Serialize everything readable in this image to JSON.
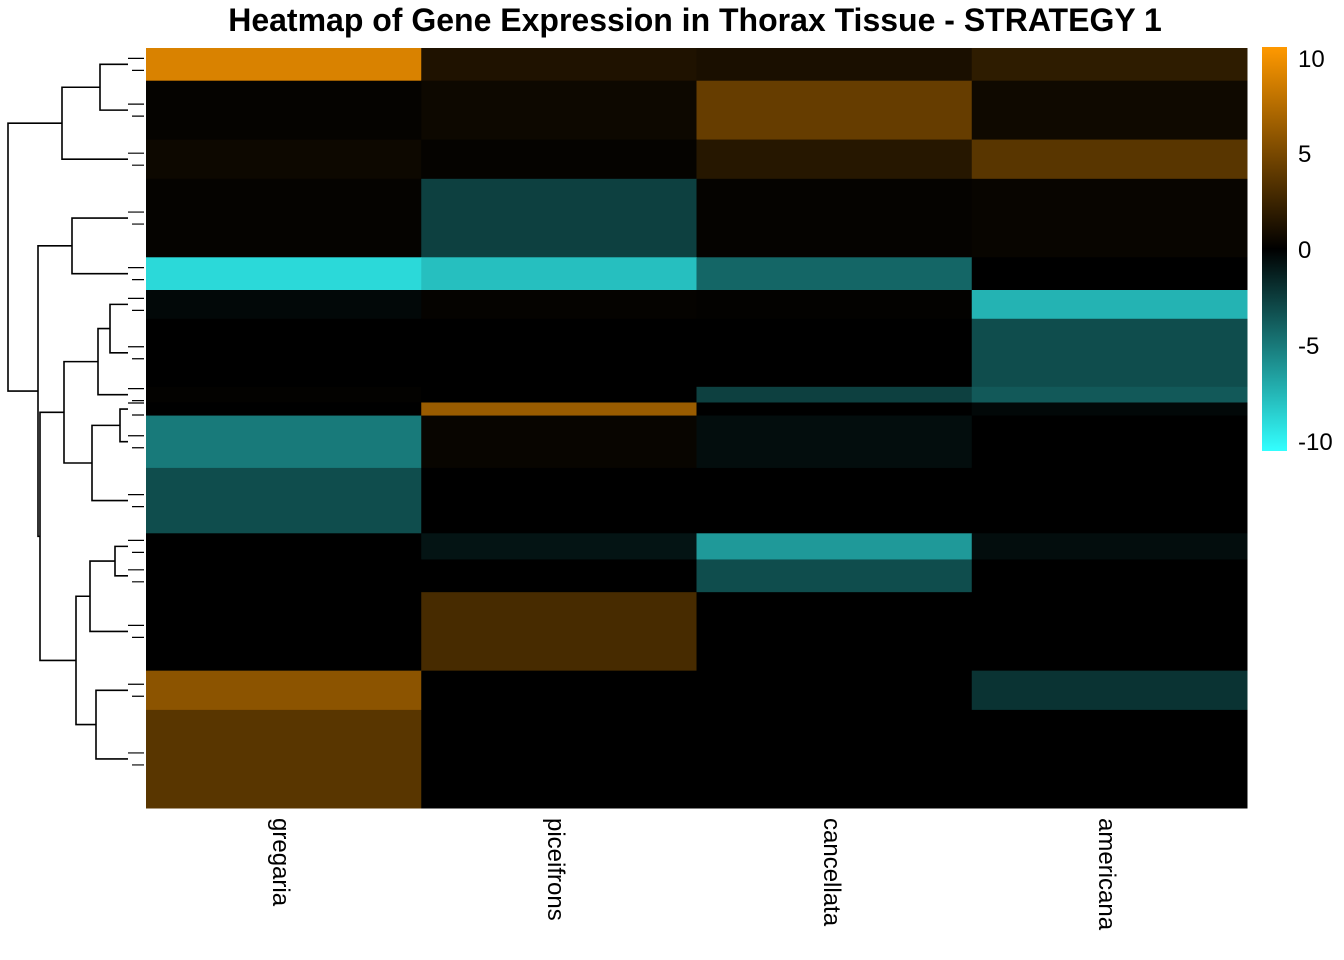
{
  "chart_data": {
    "type": "heatmap",
    "title": "Heatmap of Gene Expression in Thorax Tissue - STRATEGY 1",
    "columns": [
      "gregaria",
      "piceifrons",
      "cancellata",
      "americana"
    ],
    "color_scale": {
      "min": -10,
      "max": 10,
      "low_color": "#33ffff",
      "mid_color": "#000000",
      "high_color": "#ff9900",
      "ticks": [
        "10",
        "5",
        "0",
        "-5",
        "-10"
      ],
      "tick_values": [
        10,
        5,
        0,
        -5,
        -10
      ]
    },
    "row_dendrogram": true,
    "row_blocks": [
      {
        "rows": 25,
        "values": [
          8.5,
          1.2,
          1.0,
          1.8
        ]
      },
      {
        "rows": 45,
        "values": [
          0.2,
          0.5,
          4.0,
          0.6
        ]
      },
      {
        "rows": 30,
        "values": [
          0.5,
          0.2,
          1.5,
          3.5
        ]
      },
      {
        "rows": 60,
        "values": [
          0.2,
          -2.5,
          0.2,
          0.3
        ]
      },
      {
        "rows": 25,
        "values": [
          -8.5,
          -7.5,
          -4.0,
          0.0
        ]
      },
      {
        "rows": 22,
        "values": [
          -0.3,
          0.2,
          0.1,
          -7.0
        ]
      },
      {
        "rows": 52,
        "values": [
          0.0,
          0.0,
          0.0,
          -3.0
        ]
      },
      {
        "rows": 12,
        "values": [
          0.1,
          0.0,
          -2.5,
          -3.5
        ]
      },
      {
        "rows": 10,
        "values": [
          0.0,
          6.0,
          0.0,
          -0.3
        ]
      },
      {
        "rows": 40,
        "values": [
          -4.8,
          0.3,
          -0.5,
          0.0
        ]
      },
      {
        "rows": 50,
        "values": [
          -3.0,
          0.0,
          0.0,
          0.0
        ]
      },
      {
        "rows": 20,
        "values": [
          0.0,
          -0.8,
          -6.0,
          -0.5
        ]
      },
      {
        "rows": 25,
        "values": [
          0.0,
          0.0,
          -3.0,
          0.0
        ]
      },
      {
        "rows": 60,
        "values": [
          0.0,
          2.8,
          0.0,
          0.0
        ]
      },
      {
        "rows": 30,
        "values": [
          5.5,
          0.0,
          0.0,
          -2.0
        ]
      },
      {
        "rows": 75,
        "values": [
          3.5,
          0.0,
          0.0,
          0.0
        ]
      }
    ]
  }
}
